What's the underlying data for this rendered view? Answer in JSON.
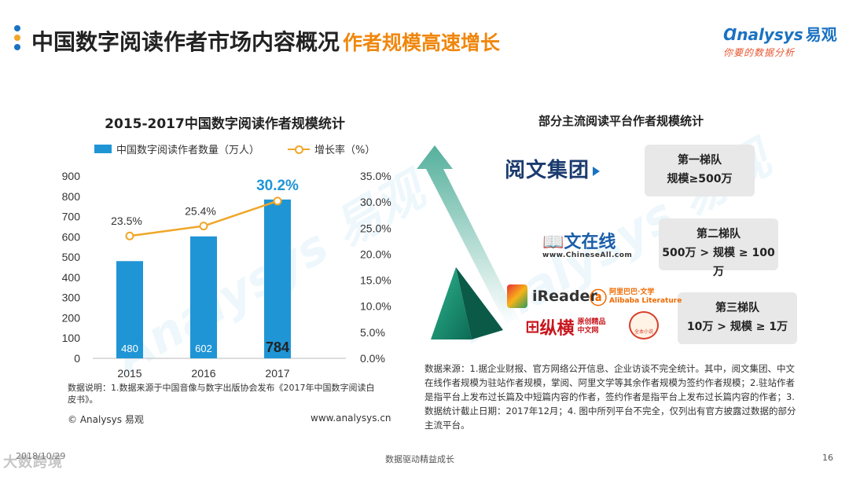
{
  "header": {
    "title": "中国数字阅读作者市场内容概况",
    "subtitle": "作者规模高速增长",
    "subtitle_color": "#f0870d",
    "dot_colors": [
      "#1a72c2",
      "#f0a627",
      "#1a72c2"
    ]
  },
  "brand": {
    "name": "nalysys",
    "name_cn": "易观",
    "slogan": "你要的数据分析"
  },
  "left_panel": {
    "note": "数据说明：1.数据来源于中国音像与数字出版协会发布《2017年中国数字阅读白皮书》。",
    "copyright": "© Analysys 易观",
    "website": "www.analysys.cn"
  },
  "chart_data": {
    "type": "bar",
    "title": "2015-2017中国数字阅读作者规模统计",
    "categories": [
      "2015",
      "2016",
      "2017"
    ],
    "series": [
      {
        "name": "中国数字阅读作者数量（万人）",
        "type": "bar",
        "axis": "left",
        "values": [
          480,
          602,
          784
        ],
        "labels": [
          "480",
          "602",
          "784"
        ],
        "color": "#1f95d6"
      },
      {
        "name": "增长率（%）",
        "type": "line",
        "axis": "right",
        "values": [
          23.5,
          25.4,
          30.2
        ],
        "labels": [
          "23.5%",
          "25.4%",
          "30.2%"
        ],
        "color": "#f0a627"
      }
    ],
    "ylim": [
      0,
      900
    ],
    "yticks": [
      "0",
      "100",
      "200",
      "300",
      "400",
      "500",
      "600",
      "700",
      "800",
      "900"
    ],
    "y2lim": [
      0,
      35
    ],
    "y2ticks": [
      "0.0%",
      "5.0%",
      "10.0%",
      "15.0%",
      "20.0%",
      "25.0%",
      "30.0%",
      "35.0%"
    ],
    "highlight_color": "#1f95d6",
    "grid": false,
    "legend_position": "top"
  },
  "right_panel": {
    "title": "部分主流阅读平台作者规模统计",
    "tiers": [
      {
        "name": "第一梯队",
        "scale": "规模≥500万"
      },
      {
        "name": "第二梯队",
        "scale": "500万 > 规模 ≥ 100万"
      },
      {
        "name": "第三梯队",
        "scale": "10万 > 规模 ≥ 1万"
      }
    ],
    "logos": {
      "yuewen": "阅文集团",
      "chineseall": "文在线",
      "chineseall_small": "www.ChineseAll.com",
      "ireader": "iReader",
      "alibaba": "阿里巴巴·文学",
      "alibaba_en": "Alibaba Literature",
      "zongheng": "纵横",
      "zongheng_sub1": "原创精品",
      "zongheng_sub2": "中文网",
      "badge_text": "全本小说"
    },
    "source": "数据来源：1.据企业财报、官方网络公开信息、企业访谈不完全统计。其中，阅文集团、中文在线作者规模为驻站作者规模，掌阅、阿里文学等其余作者规模为签约作者规模；2.驻站作者是指平台上发布过长篇及中短篇内容的作者，签约作者是指平台上发布过长篇内容的作者；3.数据统计截止日期：2017年12月；4. 图中所列平台不完全，仅列出有官方披露过数据的部分主流平台。"
  },
  "footer": {
    "date": "2018/10/29",
    "center": "数据驱动精益成长",
    "page": "16",
    "stamp": "大数跨境"
  }
}
